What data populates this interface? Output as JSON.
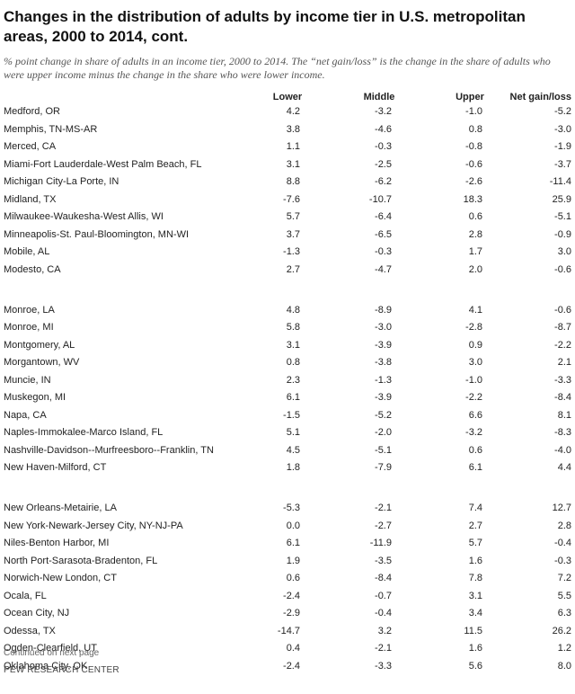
{
  "header": {
    "title": "Changes in the distribution of adults by income tier in U.S. metropolitan areas, 2000 to 2014, cont.",
    "subtitle": "% point change in share of adults in an income tier, 2000 to 2014. The “net gain/loss” is the change in the share of adults who were upper income minus the change in the share who were lower income."
  },
  "table": {
    "columns": [
      "Lower",
      "Middle",
      "Upper",
      "Net gain/loss"
    ],
    "rows": [
      [
        "Medford, OR",
        "4.2",
        "-3.2",
        "-1.0",
        "-5.2"
      ],
      [
        "Memphis, TN-MS-AR",
        "3.8",
        "-4.6",
        "0.8",
        "-3.0"
      ],
      [
        "Merced, CA",
        "1.1",
        "-0.3",
        "-0.8",
        "-1.9"
      ],
      [
        "Miami-Fort Lauderdale-West Palm Beach, FL",
        "3.1",
        "-2.5",
        "-0.6",
        "-3.7"
      ],
      [
        "Michigan City-La Porte, IN",
        "8.8",
        "-6.2",
        "-2.6",
        "-11.4"
      ],
      [
        "Midland, TX",
        "-7.6",
        "-10.7",
        "18.3",
        "25.9"
      ],
      [
        "Milwaukee-Waukesha-West Allis, WI",
        "5.7",
        "-6.4",
        "0.6",
        "-5.1"
      ],
      [
        "Minneapolis-St. Paul-Bloomington, MN-WI",
        "3.7",
        "-6.5",
        "2.8",
        "-0.9"
      ],
      [
        "Mobile, AL",
        "-1.3",
        "-0.3",
        "1.7",
        "3.0"
      ],
      [
        "Modesto, CA",
        "2.7",
        "-4.7",
        "2.0",
        "-0.6"
      ],
      [
        "Monroe, LA",
        "4.8",
        "-8.9",
        "4.1",
        "-0.6"
      ],
      [
        "Monroe, MI",
        "5.8",
        "-3.0",
        "-2.8",
        "-8.7"
      ],
      [
        "Montgomery, AL",
        "3.1",
        "-3.9",
        "0.9",
        "-2.2"
      ],
      [
        "Morgantown, WV",
        "0.8",
        "-3.8",
        "3.0",
        "2.1"
      ],
      [
        "Muncie, IN",
        "2.3",
        "-1.3",
        "-1.0",
        "-3.3"
      ],
      [
        "Muskegon, MI",
        "6.1",
        "-3.9",
        "-2.2",
        "-8.4"
      ],
      [
        "Napa, CA",
        "-1.5",
        "-5.2",
        "6.6",
        "8.1"
      ],
      [
        "Naples-Immokalee-Marco Island, FL",
        "5.1",
        "-2.0",
        "-3.2",
        "-8.3"
      ],
      [
        "Nashville-Davidson--Murfreesboro--Franklin, TN",
        "4.5",
        "-5.1",
        "0.6",
        "-4.0"
      ],
      [
        "New Haven-Milford, CT",
        "1.8",
        "-7.9",
        "6.1",
        "4.4"
      ],
      [
        "New Orleans-Metairie, LA",
        "-5.3",
        "-2.1",
        "7.4",
        "12.7"
      ],
      [
        "New York-Newark-Jersey City, NY-NJ-PA",
        "0.0",
        "-2.7",
        "2.7",
        "2.8"
      ],
      [
        "Niles-Benton Harbor, MI",
        "6.1",
        "-11.9",
        "5.7",
        "-0.4"
      ],
      [
        "North Port-Sarasota-Bradenton, FL",
        "1.9",
        "-3.5",
        "1.6",
        "-0.3"
      ],
      [
        "Norwich-New London, CT",
        "0.6",
        "-8.4",
        "7.8",
        "7.2"
      ],
      [
        "Ocala, FL",
        "-2.4",
        "-0.7",
        "3.1",
        "5.5"
      ],
      [
        "Ocean City, NJ",
        "-2.9",
        "-0.4",
        "3.4",
        "6.3"
      ],
      [
        "Odessa, TX",
        "-14.7",
        "3.2",
        "11.5",
        "26.2"
      ],
      [
        "Ogden-Clearfield, UT",
        "0.4",
        "-2.1",
        "1.6",
        "1.2"
      ],
      [
        "Oklahoma City, OK",
        "-2.4",
        "-3.3",
        "5.6",
        "8.0"
      ]
    ]
  },
  "footer": {
    "note": "Continued on next page",
    "source": "PEW RESEARCH CENTER"
  }
}
